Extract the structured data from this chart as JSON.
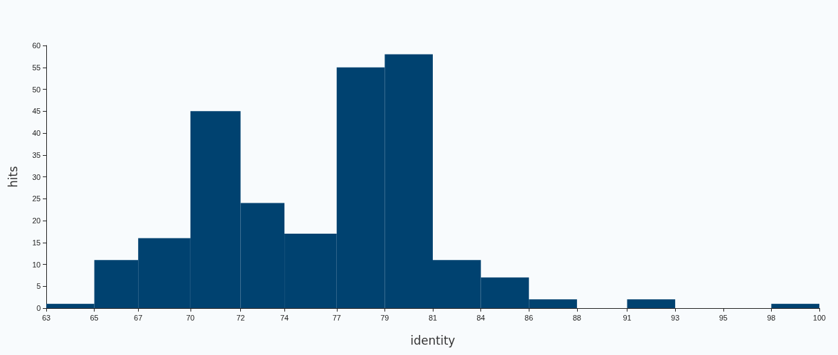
{
  "chart_data": {
    "type": "histogram",
    "xlabel": "identity",
    "ylabel": "hits",
    "bins": [
      63,
      65.3,
      67.4,
      69.9,
      72.3,
      74.4,
      76.9,
      79.2,
      81.5,
      83.8,
      86.1,
      88.4,
      90.8,
      93.1,
      97.7,
      100
    ],
    "values": [
      1,
      11,
      16,
      45,
      24,
      17,
      55,
      58,
      11,
      7,
      2,
      0,
      2,
      0,
      1
    ],
    "color": "#004270",
    "xlim": [
      63,
      100
    ],
    "xticks": [
      63,
      {
        "value": 65.3,
        "label": "65"
      },
      {
        "value": 67.4,
        "label": "67"
      },
      {
        "value": 69.9,
        "label": "70"
      },
      {
        "value": 72.3,
        "label": "72"
      },
      {
        "value": 74.4,
        "label": "74"
      },
      {
        "value": 76.9,
        "label": "77"
      },
      {
        "value": 79.2,
        "label": "79"
      },
      {
        "value": 81.5,
        "label": "81"
      },
      {
        "value": 83.8,
        "label": "84"
      },
      {
        "value": 86.1,
        "label": "86"
      },
      {
        "value": 88.4,
        "label": "88"
      },
      {
        "value": 90.8,
        "label": "91"
      },
      {
        "value": 93.1,
        "label": "93"
      },
      {
        "value": 95.4,
        "label": "95"
      },
      {
        "value": 97.7,
        "label": "98"
      },
      100
    ],
    "ylim": [
      0,
      60
    ],
    "yticks": [
      0,
      5,
      10,
      15,
      20,
      25,
      30,
      35,
      40,
      45,
      50,
      55,
      60
    ],
    "grid": false
  }
}
